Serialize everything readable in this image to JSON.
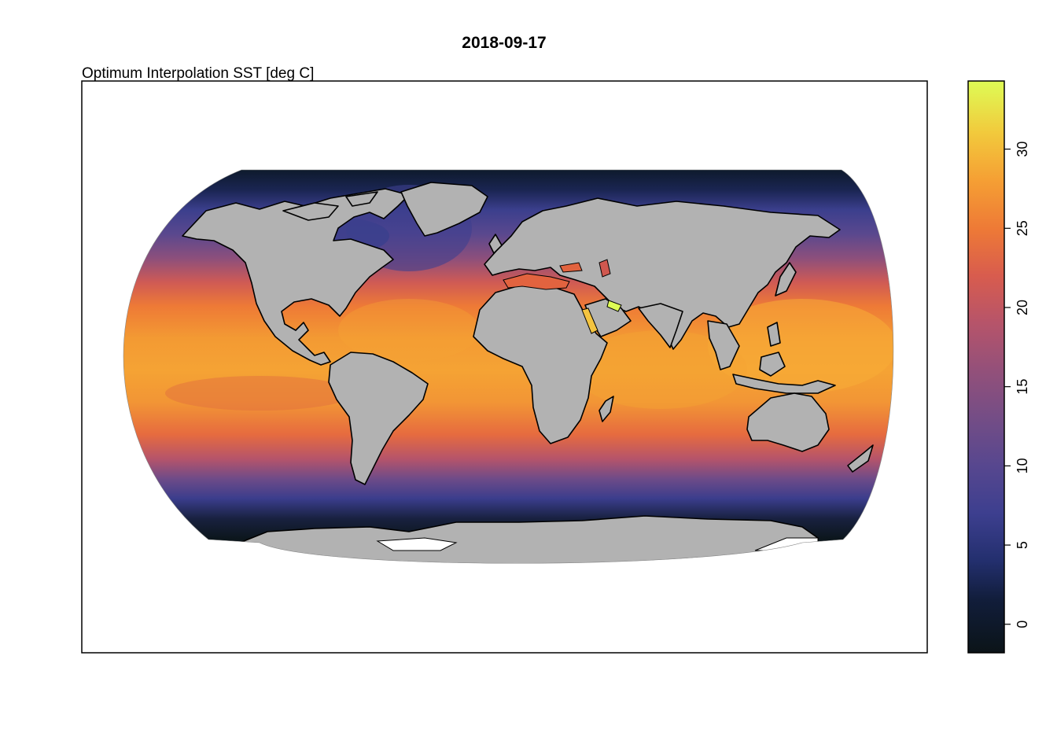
{
  "title": "2018-09-17",
  "variable_label": "Optimum Interpolation SST [deg C]",
  "map": {
    "projection": "Robinson",
    "background_color": "#ffffff",
    "land_color": "#b2b2b2",
    "border_color": "#000000",
    "ice_color": "#ffffff"
  },
  "colorbar": {
    "min": -1.8,
    "max": 34.3,
    "ticks": [
      "0",
      "5",
      "10",
      "15",
      "20",
      "25",
      "30"
    ],
    "stops": [
      {
        "value": -1.8,
        "color": "#0b1418"
      },
      {
        "value": 1.5,
        "color": "#111d3a"
      },
      {
        "value": 4.0,
        "color": "#232f6e"
      },
      {
        "value": 7.0,
        "color": "#3d3f8f"
      },
      {
        "value": 10.0,
        "color": "#57478f"
      },
      {
        "value": 13.0,
        "color": "#744d86"
      },
      {
        "value": 16.0,
        "color": "#93507a"
      },
      {
        "value": 19.0,
        "color": "#b6546a"
      },
      {
        "value": 22.0,
        "color": "#d85c4e"
      },
      {
        "value": 25.0,
        "color": "#ee7a36"
      },
      {
        "value": 28.0,
        "color": "#f59f34"
      },
      {
        "value": 31.0,
        "color": "#f2c93c"
      },
      {
        "value": 34.3,
        "color": "#defc55"
      }
    ]
  }
}
